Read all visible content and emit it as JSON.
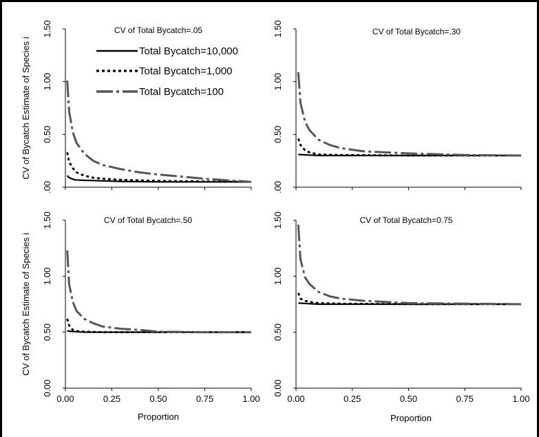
{
  "chart_data": {
    "type": "line",
    "xlabel": "Proportion",
    "ylabel": "CV of Bycatch Estimate of Species i",
    "xlim": [
      0,
      1
    ],
    "ylim": [
      0,
      1.5
    ],
    "x_ticks": [
      "0.00",
      "0.25",
      "0.50",
      "0.75",
      "1.00"
    ],
    "y_ticks": [
      "0.00",
      "0.50",
      "1.00",
      "1.50"
    ],
    "x_ticks_top": [],
    "y_ticks_top": [
      ".00",
      "0.50",
      "1.00",
      "1.50"
    ],
    "colors": {
      "n10000": "#000000",
      "n1000": "#000000",
      "n100": "#555555"
    },
    "legend": {
      "position": "top-left of first panel",
      "entries": [
        {
          "key": "n10000",
          "label": "Total Bycatch=10,000",
          "style": "solid"
        },
        {
          "key": "n1000",
          "label": "Total Bycatch=1,000",
          "style": "dotted"
        },
        {
          "key": "n100",
          "label": "Total Bycatch=100",
          "style": "dash-dot"
        }
      ]
    },
    "panels": [
      {
        "title": "CV of Total Bycatch=.05",
        "series": [
          {
            "key": "n10000",
            "x": [
              0.01,
              0.02,
              0.05,
              0.1,
              0.2,
              0.3,
              0.5,
              0.75,
              1.0
            ],
            "y": [
              0.11,
              0.09,
              0.07,
              0.065,
              0.06,
              0.055,
              0.05,
              0.05,
              0.05
            ]
          },
          {
            "key": "n1000",
            "x": [
              0.01,
              0.02,
              0.04,
              0.06,
              0.1,
              0.15,
              0.2,
              0.3,
              0.5,
              0.75,
              1.0
            ],
            "y": [
              0.33,
              0.24,
              0.18,
              0.14,
              0.11,
              0.09,
              0.08,
              0.07,
              0.06,
              0.055,
              0.05
            ]
          },
          {
            "key": "n100",
            "x": [
              0.01,
              0.02,
              0.04,
              0.06,
              0.1,
              0.15,
              0.2,
              0.3,
              0.4,
              0.5,
              0.75,
              1.0
            ],
            "y": [
              1.01,
              0.72,
              0.52,
              0.42,
              0.32,
              0.25,
              0.21,
              0.17,
              0.14,
              0.12,
              0.08,
              0.05
            ]
          }
        ]
      },
      {
        "title": "CV of Total Bycatch=.30",
        "series": [
          {
            "key": "n10000",
            "x": [
              0.01,
              0.05,
              0.1,
              0.25,
              0.5,
              0.75,
              1.0
            ],
            "y": [
              0.31,
              0.305,
              0.3,
              0.3,
              0.3,
              0.3,
              0.3
            ]
          },
          {
            "key": "n1000",
            "x": [
              0.01,
              0.02,
              0.04,
              0.06,
              0.1,
              0.2,
              0.5,
              1.0
            ],
            "y": [
              0.46,
              0.4,
              0.35,
              0.33,
              0.31,
              0.305,
              0.3,
              0.3
            ]
          },
          {
            "key": "n100",
            "x": [
              0.01,
              0.02,
              0.04,
              0.06,
              0.1,
              0.15,
              0.2,
              0.3,
              0.5,
              0.75,
              1.0
            ],
            "y": [
              1.09,
              0.8,
              0.62,
              0.54,
              0.45,
              0.4,
              0.37,
              0.34,
              0.32,
              0.305,
              0.3
            ]
          }
        ]
      },
      {
        "title": "CV of Total Bycatch=.50",
        "series": [
          {
            "key": "n10000",
            "x": [
              0.01,
              0.05,
              0.1,
              0.25,
              0.5,
              0.75,
              1.0
            ],
            "y": [
              0.51,
              0.505,
              0.5,
              0.5,
              0.5,
              0.5,
              0.5
            ]
          },
          {
            "key": "n1000",
            "x": [
              0.01,
              0.02,
              0.04,
              0.06,
              0.1,
              0.2,
              0.5,
              1.0
            ],
            "y": [
              0.62,
              0.56,
              0.52,
              0.51,
              0.505,
              0.5,
              0.5,
              0.5
            ]
          },
          {
            "key": "n100",
            "x": [
              0.01,
              0.02,
              0.04,
              0.06,
              0.1,
              0.15,
              0.2,
              0.3,
              0.4,
              0.5,
              0.75,
              1.0
            ],
            "y": [
              1.23,
              0.93,
              0.77,
              0.69,
              0.62,
              0.58,
              0.55,
              0.53,
              0.52,
              0.505,
              0.5,
              0.5
            ]
          }
        ]
      },
      {
        "title": "CV of Total Bycatch=0.75",
        "series": [
          {
            "key": "n10000",
            "x": [
              0.01,
              0.05,
              0.1,
              0.25,
              0.5,
              0.75,
              1.0
            ],
            "y": [
              0.76,
              0.755,
              0.75,
              0.75,
              0.75,
              0.75,
              0.75
            ]
          },
          {
            "key": "n1000",
            "x": [
              0.01,
              0.02,
              0.04,
              0.06,
              0.1,
              0.2,
              0.5,
              1.0
            ],
            "y": [
              0.85,
              0.8,
              0.78,
              0.77,
              0.76,
              0.755,
              0.75,
              0.75
            ]
          },
          {
            "key": "n100",
            "x": [
              0.01,
              0.02,
              0.04,
              0.06,
              0.1,
              0.15,
              0.2,
              0.3,
              0.4,
              0.5,
              0.75,
              1.0
            ],
            "y": [
              1.46,
              1.15,
              0.99,
              0.93,
              0.86,
              0.82,
              0.8,
              0.78,
              0.77,
              0.76,
              0.755,
              0.75
            ]
          }
        ]
      }
    ]
  }
}
